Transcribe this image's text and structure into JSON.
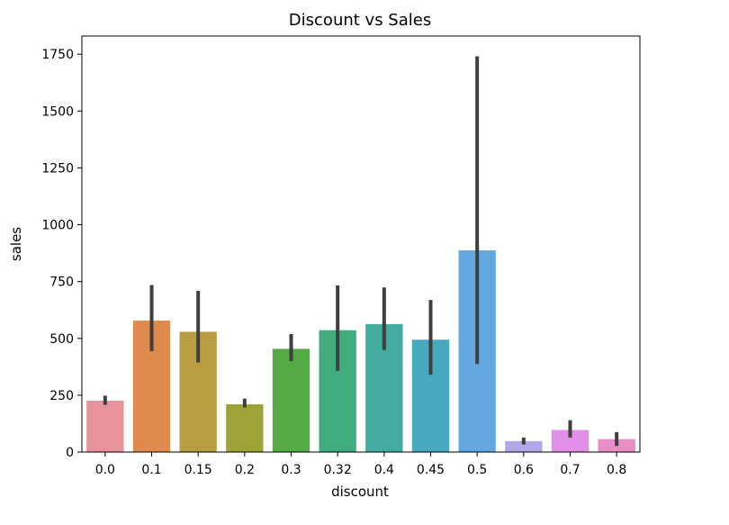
{
  "chart_data": {
    "type": "bar",
    "title": "Discount vs Sales",
    "xlabel": "discount",
    "ylabel": "sales",
    "categories": [
      "0.0",
      "0.1",
      "0.15",
      "0.2",
      "0.3",
      "0.32",
      "0.4",
      "0.45",
      "0.5",
      "0.6",
      "0.7",
      "0.8"
    ],
    "values": [
      226,
      578,
      529,
      210,
      454,
      536,
      563,
      494,
      887,
      48,
      97,
      57
    ],
    "error_low": [
      208,
      444,
      394,
      196,
      400,
      357,
      449,
      340,
      387,
      33,
      64,
      27
    ],
    "error_high": [
      248,
      735,
      709,
      235,
      519,
      733,
      724,
      669,
      1741,
      64,
      140,
      88
    ],
    "colors": [
      "#e8929c",
      "#de8a4d",
      "#ba9d42",
      "#9ea337",
      "#54ab45",
      "#41ad7f",
      "#43ab9f",
      "#46a9bd",
      "#63a7e0",
      "#b0a7e9",
      "#e18fe8",
      "#e88dc5"
    ],
    "ylim": [
      0,
      1830
    ],
    "yticks": [
      0,
      250,
      500,
      750,
      1000,
      1250,
      1500,
      1750
    ],
    "grid": false,
    "legend": "none"
  }
}
